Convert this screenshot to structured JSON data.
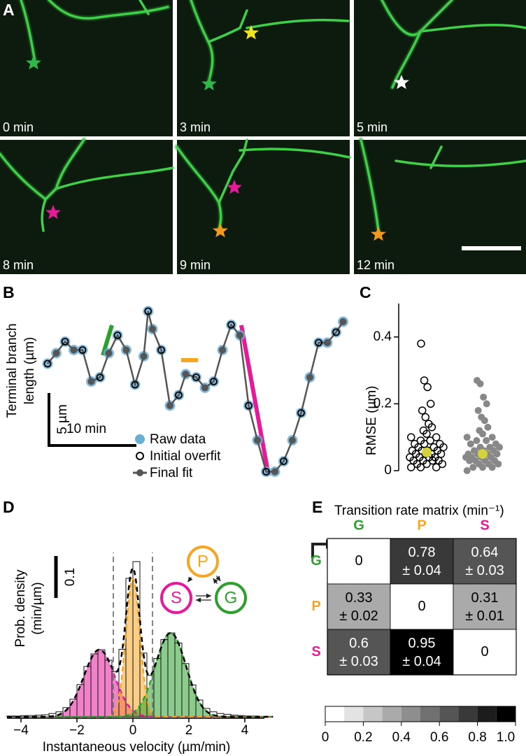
{
  "images": {
    "panel": "A",
    "time_labels": [
      "0 min",
      "3 min",
      "5 min",
      "8 min",
      "9 min",
      "12 min"
    ]
  },
  "chart_data": [
    {
      "type": "line",
      "panel": "B",
      "y_label": [
        "Terminal branch",
        "length (µm)"
      ],
      "x": [
        0,
        1,
        2,
        3,
        4,
        5,
        6,
        7,
        8,
        9,
        10,
        11,
        11.5,
        12,
        13,
        14,
        15,
        15.8,
        17,
        18,
        19,
        20,
        21,
        22,
        23,
        24,
        25,
        26,
        27,
        28,
        29,
        30,
        31,
        32,
        33,
        33.8
      ],
      "series": [
        {
          "name": "Raw data",
          "color": "#6baed6",
          "values": [
            12.0,
            13.0,
            14.1,
            13.3,
            13.3,
            10.3,
            10.7,
            13.0,
            14.7,
            13.3,
            10.0,
            12.7,
            17.0,
            15.3,
            13.3,
            8.0,
            9.0,
            11.0,
            10.7,
            9.7,
            10.3,
            13.3,
            15.7,
            14.7,
            8.0,
            4.7,
            1.7,
            1.7,
            2.7,
            4.7,
            7.3,
            10.7,
            14.0,
            14.0,
            15.0,
            16.0
          ]
        },
        {
          "name": "Initial overfit",
          "color": "#000000",
          "values": [
            12.0,
            13.0,
            14.1,
            13.3,
            13.3,
            10.3,
            10.7,
            13.0,
            14.7,
            13.3,
            10.0,
            12.7,
            17.0,
            15.3,
            13.3,
            8.0,
            9.0,
            11.0,
            10.7,
            9.7,
            10.3,
            13.3,
            15.7,
            14.7,
            8.0,
            4.7,
            1.7,
            1.7,
            2.7,
            4.7,
            7.3,
            10.7,
            14.0,
            14.0,
            15.0,
            16.0
          ]
        },
        {
          "name": "Final fit",
          "color": "#555555",
          "values": [
            12.0,
            13.0,
            14.1,
            13.3,
            13.3,
            10.3,
            10.7,
            13.0,
            14.7,
            13.3,
            10.0,
            12.7,
            17.0,
            15.3,
            13.3,
            8.0,
            9.0,
            11.0,
            10.7,
            9.7,
            10.3,
            13.3,
            15.7,
            14.7,
            8.0,
            4.7,
            1.7,
            1.7,
            2.7,
            4.7,
            7.3,
            10.7,
            14.0,
            14.0,
            15.0,
            16.0
          ]
        }
      ],
      "scale_bars": [
        {
          "axis": "y",
          "value": 5,
          "label": "5 µm"
        },
        {
          "axis": "x",
          "value": 10,
          "label": "10 min"
        }
      ]
    },
    {
      "type": "strip",
      "panel": "C",
      "y_label": "RMSE (µm)",
      "ylim": [
        0,
        0.5
      ],
      "yticks": [
        0,
        0.2,
        0.4
      ],
      "mean_color": "#d4d43a",
      "series": [
        {
          "marker": "open",
          "color": "#000000",
          "mean": 0.055,
          "values": [
            0.38,
            0.27,
            0.25,
            0.2,
            0.18,
            0.16,
            0.14,
            0.13,
            0.12,
            0.11,
            0.1,
            0.1,
            0.09,
            0.09,
            0.08,
            0.08,
            0.08,
            0.07,
            0.07,
            0.07,
            0.06,
            0.06,
            0.06,
            0.06,
            0.05,
            0.05,
            0.05,
            0.05,
            0.04,
            0.04,
            0.04,
            0.04,
            0.03,
            0.03,
            0.03,
            0.03,
            0.02,
            0.02,
            0.02,
            0.01,
            0.01,
            0.01
          ]
        },
        {
          "marker": "filled",
          "color": "#888888",
          "mean": 0.05,
          "values": [
            0.27,
            0.26,
            0.22,
            0.2,
            0.18,
            0.16,
            0.15,
            0.13,
            0.12,
            0.11,
            0.1,
            0.1,
            0.09,
            0.09,
            0.08,
            0.08,
            0.07,
            0.07,
            0.07,
            0.06,
            0.06,
            0.06,
            0.05,
            0.05,
            0.05,
            0.05,
            0.04,
            0.04,
            0.04,
            0.04,
            0.03,
            0.03,
            0.03,
            0.03,
            0.02,
            0.02,
            0.02,
            0.01,
            0.01,
            0.01,
            0
          ]
        }
      ]
    },
    {
      "type": "histogram",
      "panel": "D",
      "x_label": "Instantaneous velocity (µm/min)",
      "y_label": [
        "Prob. density",
        "(min/µm)"
      ],
      "xlim": [
        -4.5,
        5
      ],
      "ylim": [
        0,
        0.4
      ],
      "xticks": [
        {
          "value": -4,
          "label": "−4"
        },
        {
          "value": -2,
          "label": "−2"
        },
        0,
        2,
        4
      ],
      "bins": [
        -4.5,
        -4.25,
        -4,
        -3.75,
        -3.5,
        -3.25,
        -3,
        -2.75,
        -2.5,
        -2.25,
        -2,
        -1.75,
        -1.5,
        -1.25,
        -1,
        -0.75,
        -0.5,
        -0.25,
        0,
        0.25,
        0.5,
        0.75,
        1,
        1.25,
        1.5,
        1.75,
        2,
        2.25,
        2.5,
        2.75,
        3,
        3.25,
        3.5,
        3.75,
        4,
        4.25,
        4.5,
        4.75,
        5
      ],
      "counts": [
        0.002,
        0.002,
        0.003,
        0.003,
        0.004,
        0.005,
        0.008,
        0.012,
        0.022,
        0.042,
        0.077,
        0.12,
        0.15,
        0.16,
        0.135,
        0.108,
        0.161,
        0.33,
        0.37,
        0.152,
        0.099,
        0.139,
        0.184,
        0.2,
        0.176,
        0.127,
        0.076,
        0.04,
        0.02,
        0.012,
        0.008,
        0.006,
        0.004,
        0.003,
        0.002,
        0.002,
        0.001,
        0.001
      ],
      "thresholds": [
        -0.7,
        0.7
      ],
      "components": [
        {
          "name": "S",
          "color": "#e6199b",
          "mean": -1.2,
          "sd": 0.55,
          "peak": 0.16
        },
        {
          "name": "P",
          "color": "#f5a623",
          "mean": 0,
          "sd": 0.25,
          "peak": 0.33
        },
        {
          "name": "G",
          "color": "#2ca02c",
          "mean": 1.35,
          "sd": 0.55,
          "peak": 0.2
        }
      ],
      "scale_bar": {
        "value": 0.1,
        "label": "0.1"
      }
    },
    {
      "type": "heatmap",
      "panel": "E",
      "title": "Transition rate matrix (min⁻¹)",
      "rows": [
        "G",
        "P",
        "S"
      ],
      "columns": [
        "G",
        "P",
        "S"
      ],
      "label_colors": [
        "#2ca02c",
        "#f5a623",
        "#e6199b"
      ],
      "values": [
        [
          0,
          0.78,
          0.64
        ],
        [
          0.33,
          0,
          0.31
        ],
        [
          0.6,
          0.95,
          0
        ]
      ],
      "errors": [
        [
          null,
          "± 0.04",
          "± 0.03"
        ],
        [
          "± 0.02",
          null,
          "± 0.01"
        ],
        [
          "± 0.03",
          "± 0.04",
          null
        ]
      ],
      "clim": [
        0,
        1
      ],
      "color_steps": 10,
      "colorbar_ticks": [
        0,
        0.2,
        0.4,
        0.6,
        0.8,
        {
          "value": 1,
          "label": "1.0"
        }
      ]
    }
  ]
}
